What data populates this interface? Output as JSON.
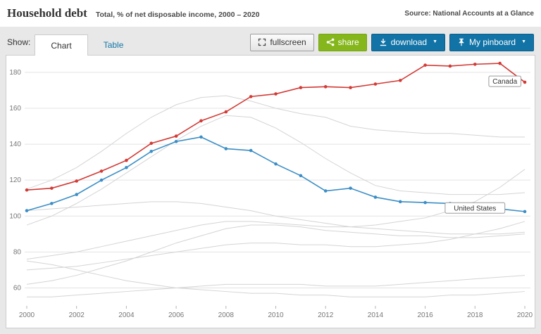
{
  "header": {
    "title": "Household debt",
    "subtitle": "Total, % of net disposable income, 2000 – 2020",
    "source": "Source: National Accounts at a Glance"
  },
  "toolbar": {
    "show_label": "Show:",
    "tabs": [
      {
        "label": "Chart",
        "active": true
      },
      {
        "label": "Table",
        "active": false
      }
    ],
    "buttons": {
      "fullscreen": "fullscreen",
      "share": "share",
      "download": "download",
      "pinboard": "My pinboard",
      "caret": "▼"
    }
  },
  "chart_data": {
    "type": "line",
    "title": "Household debt",
    "subtitle": "Total, % of net disposable income, 2000 – 2020",
    "x": [
      2000,
      2001,
      2002,
      2003,
      2004,
      2005,
      2006,
      2007,
      2008,
      2009,
      2010,
      2011,
      2012,
      2013,
      2014,
      2015,
      2016,
      2017,
      2018,
      2019,
      2020
    ],
    "x_tick_step": 2,
    "ylim": [
      50,
      187
    ],
    "yticks": [
      60,
      80,
      100,
      120,
      140,
      160,
      180
    ],
    "grid": "horizontal",
    "colors": {
      "canada": "#d23a35",
      "united_states": "#3b8ec6",
      "other": "#d4d4d4"
    },
    "series": [
      {
        "name": "other-1",
        "color": "#d4d4d4",
        "width": 1,
        "markers": false,
        "values": [
          115,
          120,
          127,
          136,
          146,
          155,
          162,
          166,
          167,
          164,
          160,
          157,
          155,
          150,
          148,
          147,
          146,
          146,
          145,
          144,
          144
        ]
      },
      {
        "name": "other-2",
        "color": "#d4d4d4",
        "width": 1,
        "markers": false,
        "values": [
          95,
          100,
          107,
          115,
          124,
          133,
          142,
          150,
          156,
          155,
          149,
          141,
          132,
          124,
          117,
          114,
          113,
          112,
          112,
          112,
          113
        ]
      },
      {
        "name": "other-3",
        "color": "#d4d4d4",
        "width": 1,
        "markers": false,
        "values": [
          76,
          78,
          80,
          83,
          86,
          89,
          92,
          95,
          97,
          97,
          96,
          95,
          94,
          94,
          95,
          97,
          99,
          103,
          108,
          116,
          126
        ]
      },
      {
        "name": "other-4",
        "color": "#d4d4d4",
        "width": 1,
        "markers": false,
        "values": [
          103,
          104,
          105,
          106,
          107,
          108,
          108,
          107,
          105,
          103,
          100,
          98,
          96,
          94,
          93,
          92,
          91,
          90,
          90,
          90,
          91
        ]
      },
      {
        "name": "other-5",
        "color": "#d4d4d4",
        "width": 1,
        "markers": false,
        "values": [
          62,
          64,
          67,
          71,
          75,
          80,
          85,
          89,
          93,
          95,
          95,
          94,
          92,
          91,
          90,
          89,
          89,
          88,
          88,
          89,
          90
        ]
      },
      {
        "name": "other-6",
        "color": "#d4d4d4",
        "width": 1,
        "markers": false,
        "values": [
          75,
          73,
          70,
          67,
          64,
          62,
          60,
          59,
          58,
          57,
          57,
          56,
          56,
          55,
          55,
          55,
          55,
          56,
          56,
          57,
          58
        ]
      },
      {
        "name": "other-7",
        "color": "#d4d4d4",
        "width": 1,
        "markers": false,
        "values": [
          55,
          55,
          56,
          57,
          58,
          59,
          60,
          61,
          62,
          62,
          62,
          62,
          61,
          61,
          61,
          62,
          63,
          64,
          65,
          66,
          67
        ]
      },
      {
        "name": "other-8",
        "color": "#d4d4d4",
        "width": 1,
        "markers": false,
        "values": [
          70,
          71,
          72,
          74,
          76,
          78,
          80,
          82,
          84,
          85,
          85,
          84,
          84,
          83,
          83,
          84,
          85,
          87,
          90,
          93,
          97
        ]
      },
      {
        "name": "United States",
        "color": "#3b8ec6",
        "width": 1.6,
        "markers": true,
        "values": [
          103,
          107,
          112,
          120,
          127,
          136,
          141.5,
          144,
          137.5,
          136.5,
          129,
          122.5,
          114,
          115.5,
          110.5,
          108,
          107.5,
          107,
          105.5,
          104,
          102.5
        ]
      },
      {
        "name": "Canada",
        "color": "#d23a35",
        "width": 1.6,
        "markers": true,
        "values": [
          114.5,
          115.5,
          119.5,
          125,
          131,
          140.5,
          144.5,
          153,
          158,
          166.5,
          168,
          171.5,
          172,
          171.5,
          173.5,
          175.5,
          184,
          183.5,
          184.5,
          185,
          174.5
        ]
      }
    ],
    "labels": [
      {
        "text": "Canada",
        "year": 2019.2,
        "value": 175
      },
      {
        "text": "United States",
        "year": 2018,
        "value": 104.5
      }
    ]
  }
}
